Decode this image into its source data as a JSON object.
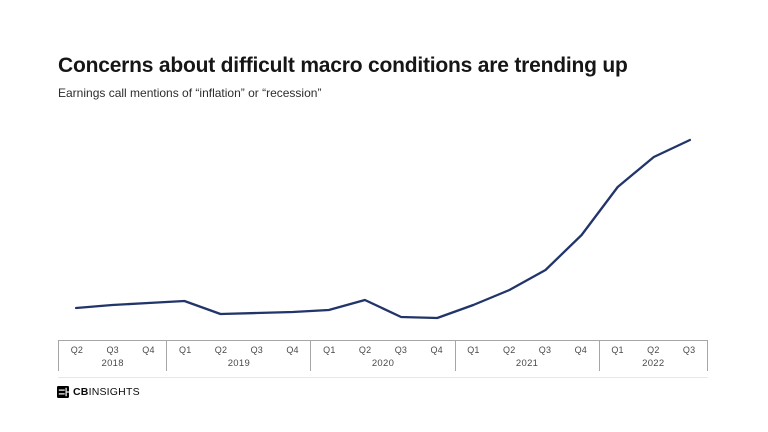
{
  "header": {
    "title": "Concerns about difficult macro conditions are trending up",
    "subtitle": "Earnings call mentions of “inflation” or “recession”"
  },
  "chart_data": {
    "type": "line",
    "title": "Concerns about difficult macro conditions are trending up",
    "subtitle": "Earnings call mentions of “inflation” or “recession”",
    "series_name": "Earnings call mentions of “inflation” or “recession”",
    "categories": [
      "Q2 2018",
      "Q3 2018",
      "Q4 2018",
      "Q1 2019",
      "Q2 2019",
      "Q3 2019",
      "Q4 2019",
      "Q1 2020",
      "Q2 2020",
      "Q3 2020",
      "Q4 2020",
      "Q1 2021",
      "Q2 2021",
      "Q3 2021",
      "Q4 2021",
      "Q1 2022",
      "Q2 2022",
      "Q3 2022"
    ],
    "values": [
      16,
      17.5,
      18.5,
      19.5,
      13,
      13.5,
      14,
      15,
      20,
      11.5,
      11,
      17.5,
      25,
      35,
      52.5,
      76.5,
      91.5,
      100
    ],
    "x_groups": [
      {
        "year": "2018",
        "quarters": [
          "Q2",
          "Q3",
          "Q4"
        ]
      },
      {
        "year": "2019",
        "quarters": [
          "Q1",
          "Q2",
          "Q3",
          "Q4"
        ]
      },
      {
        "year": "2020",
        "quarters": [
          "Q1",
          "Q2",
          "Q3",
          "Q4"
        ]
      },
      {
        "year": "2021",
        "quarters": [
          "Q1",
          "Q2",
          "Q3",
          "Q4"
        ]
      },
      {
        "year": "2022",
        "quarters": [
          "Q1",
          "Q2",
          "Q3"
        ]
      }
    ],
    "xlabel": "",
    "ylabel": "",
    "ylim": [
      0,
      105
    ],
    "y_axis_visible": false,
    "grid": false,
    "legend_position": "none",
    "value_note": "No y-axis or data labels shown in source; values are relative estimates on a 0–100 index read from line height",
    "line_color": "#22356a"
  },
  "footer": {
    "logo_bold": "CB",
    "logo_regular": "INSIGHTS"
  }
}
